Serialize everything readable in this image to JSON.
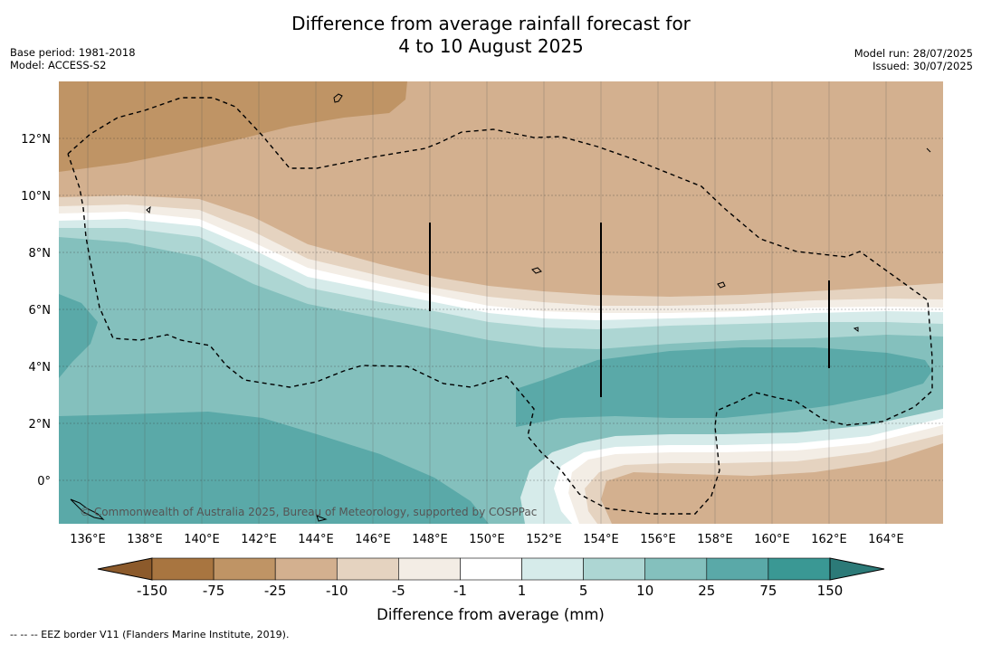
{
  "title_line1": "Difference from average rainfall forecast for",
  "title_line2": "4 to 10 August 2025",
  "base_period": "Base period: 1981-2018",
  "model": "Model: ACCESS-S2",
  "model_run": "Model run: 28/07/2025",
  "issued": "Issued: 30/07/2025",
  "copyright": "© Commonwealth of Australia 2025, Bureau of Meteorology, supported by COSPPac",
  "footnote": "--  --  -- EEZ border V11 (Flanders Marine Institute, 2019).",
  "lon_ticks": [
    "136°E",
    "138°E",
    "140°E",
    "142°E",
    "144°E",
    "146°E",
    "148°E",
    "150°E",
    "152°E",
    "154°E",
    "156°E",
    "158°E",
    "160°E",
    "162°E",
    "164°E"
  ],
  "lat_ticks": [
    "12°N",
    "10°N",
    "8°N",
    "6°N",
    "4°N",
    "2°N",
    "0°"
  ],
  "colorbar": {
    "labels": [
      "-150",
      "-75",
      "-25",
      "-10",
      "-5",
      "-1",
      "1",
      "5",
      "10",
      "25",
      "75",
      "150"
    ],
    "title": "Difference from average (mm)",
    "colors": [
      "#a87540",
      "#bf9465",
      "#d3b08f",
      "#e5d3c0",
      "#f3ede5",
      "#ffffff",
      "#d6ebea",
      "#add6d3",
      "#84c0bd",
      "#5aa9a8",
      "#3a9894"
    ],
    "end_low": "#8c5a2b",
    "end_high": "#2c7a78"
  },
  "chart_data": {
    "type": "heatmap",
    "lon_range": [
      135,
      166
    ],
    "lat_range": [
      -1.5,
      14
    ],
    "bands": [
      {
        "range": "-150 to -75",
        "color": "#a87540"
      },
      {
        "range": "-75 to -25",
        "color": "#bf9465"
      },
      {
        "range": "-25 to -10",
        "color": "#d3b08f"
      },
      {
        "range": "-10 to -5",
        "color": "#e5d3c0"
      },
      {
        "range": "-5 to -1",
        "color": "#f3ede5"
      },
      {
        "range": "-1 to 1",
        "color": "#ffffff"
      },
      {
        "range": "1 to 5",
        "color": "#d6ebea"
      },
      {
        "range": "5 to 10",
        "color": "#add6d3"
      },
      {
        "range": "10 to 25",
        "color": "#84c0bd"
      },
      {
        "range": "25 to 75",
        "color": "#5aa9a8"
      },
      {
        "range": "75 to 150",
        "color": "#3a9894"
      }
    ]
  }
}
